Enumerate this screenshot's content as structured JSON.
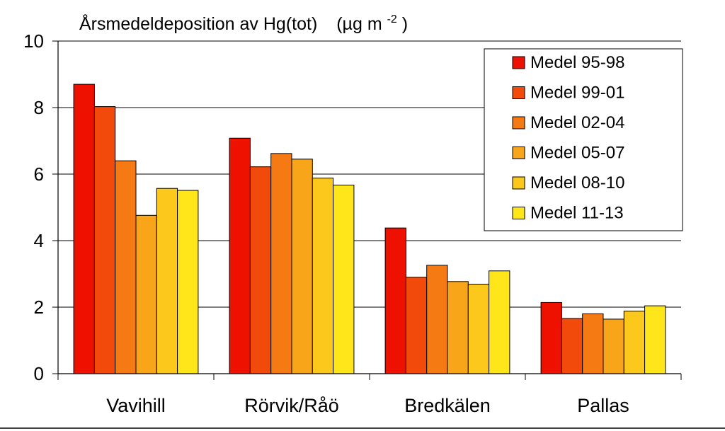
{
  "chart_data": {
    "type": "bar",
    "title": "Årsmedeldeposition  av Hg(tot)",
    "unit_main": "(µg m",
    "unit_exp": "-2",
    "unit_close": ")",
    "xlabel": "",
    "ylabel": "",
    "ylim": [
      0,
      10
    ],
    "yticks": [
      0,
      2,
      4,
      6,
      8,
      10
    ],
    "grid": true,
    "legend_position": "top-right",
    "categories": [
      "Vavihill",
      "Rörvik/Råö",
      "Bredkälen",
      "Pallas"
    ],
    "series": [
      {
        "name": "Medel 95-98",
        "color": "#ee1100",
        "values": [
          8.7,
          7.08,
          4.38,
          2.14
        ]
      },
      {
        "name": "Medel 99-01",
        "color": "#f24a0a",
        "values": [
          8.03,
          6.22,
          2.9,
          1.66
        ]
      },
      {
        "name": "Medel 02-04",
        "color": "#f57a14",
        "values": [
          6.4,
          6.62,
          3.26,
          1.8
        ]
      },
      {
        "name": "Medel 05-07",
        "color": "#f9a51a",
        "values": [
          4.76,
          6.45,
          2.77,
          1.64
        ]
      },
      {
        "name": "Medel 08-10",
        "color": "#fdc81c",
        "values": [
          5.57,
          5.88,
          2.69,
          1.88
        ]
      },
      {
        "name": "Medel 11-13",
        "color": "#ffe61a",
        "values": [
          5.51,
          5.67,
          3.09,
          2.04
        ]
      }
    ]
  }
}
